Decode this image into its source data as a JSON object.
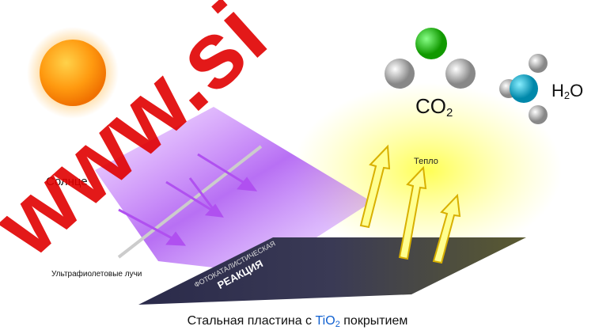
{
  "labels": {
    "sun": "Солнце",
    "uv": "Ультрафиолетовые лучи",
    "reaction_line1": "ФОТОКАТАЛИСТИЧЕСКАЯ",
    "reaction_line2": "РЕАКЦИЯ",
    "heat": "Тепло",
    "co2": {
      "main": "CO",
      "sub": "2"
    },
    "h2o": {
      "h": "H",
      "sub": "2",
      "o": "O"
    },
    "caption": {
      "before": "Стальная пластина с ",
      "tio": "TiO",
      "sub": "2",
      "after": " покрытием"
    },
    "watermark": "www.si"
  }
}
